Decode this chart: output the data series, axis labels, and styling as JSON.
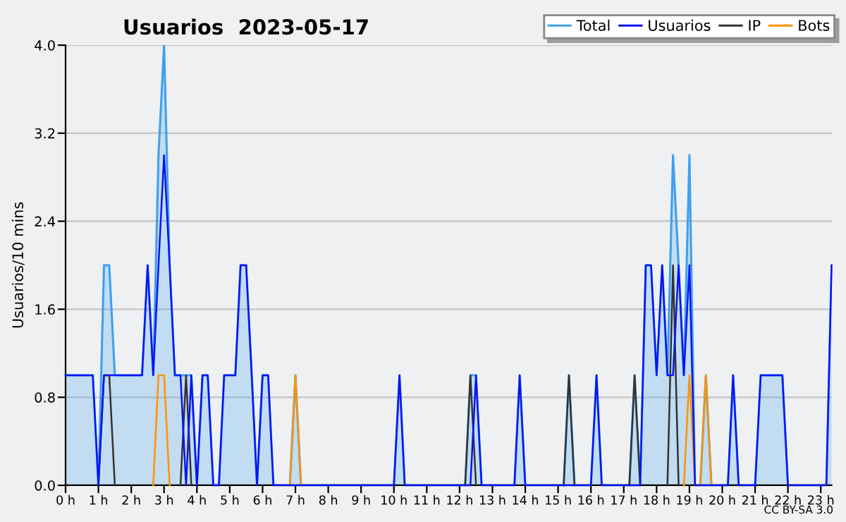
{
  "chart_data": {
    "type": "line",
    "title": "Usuarios  2023-05-17",
    "ylabel": "Usuarios/10 mins",
    "annotations": [
      "CC BY-SA 3.0"
    ],
    "x": [
      0,
      0.17,
      0.33,
      0.5,
      0.67,
      0.83,
      1,
      1.17,
      1.33,
      1.5,
      1.67,
      1.83,
      2,
      2.17,
      2.33,
      2.5,
      2.67,
      2.83,
      3,
      3.17,
      3.33,
      3.5,
      3.67,
      3.83,
      4,
      4.17,
      4.33,
      4.5,
      4.67,
      4.83,
      5,
      5.17,
      5.33,
      5.5,
      5.67,
      5.83,
      6,
      6.17,
      6.33,
      6.5,
      6.67,
      6.83,
      7,
      7.17,
      7.33,
      7.5,
      7.67,
      7.83,
      8,
      8.17,
      8.33,
      8.5,
      8.67,
      8.83,
      9,
      9.17,
      9.33,
      9.5,
      9.67,
      9.83,
      10,
      10.17,
      10.33,
      10.5,
      10.67,
      10.83,
      11,
      11.17,
      11.33,
      11.5,
      11.67,
      11.83,
      12,
      12.17,
      12.33,
      12.5,
      12.67,
      12.83,
      13,
      13.17,
      13.33,
      13.5,
      13.67,
      13.83,
      14,
      14.17,
      14.33,
      14.5,
      14.67,
      14.83,
      15,
      15.17,
      15.33,
      15.5,
      15.67,
      15.83,
      16,
      16.17,
      16.33,
      16.5,
      16.67,
      16.83,
      17,
      17.17,
      17.33,
      17.5,
      17.67,
      17.83,
      18,
      18.17,
      18.33,
      18.5,
      18.67,
      18.83,
      19,
      19.17,
      19.33,
      19.5,
      19.67,
      19.83,
      20,
      20.17,
      20.33,
      20.5,
      20.67,
      20.83,
      21,
      21.17,
      21.33,
      21.5,
      21.67,
      21.83,
      22,
      22.17,
      22.33,
      22.5,
      22.67,
      22.83,
      23,
      23.17,
      23.33
    ],
    "series": [
      {
        "name": "Total",
        "type": "area",
        "color": "#3ea0f0",
        "values": [
          1,
          1,
          1,
          1,
          1,
          1,
          0,
          2,
          2,
          1,
          1,
          1,
          1,
          1,
          1,
          2,
          1,
          3,
          4,
          2,
          1,
          1,
          1,
          1,
          0,
          1,
          1,
          0,
          0,
          1,
          1,
          1,
          2,
          2,
          1,
          0,
          1,
          1,
          0,
          0,
          0,
          0,
          1,
          0,
          0,
          0,
          0,
          0,
          0,
          0,
          0,
          0,
          0,
          0,
          0,
          0,
          0,
          0,
          0,
          0,
          0,
          1,
          0,
          0,
          0,
          0,
          0,
          0,
          0,
          0,
          0,
          0,
          0,
          0,
          1,
          1,
          0,
          0,
          0,
          0,
          0,
          0,
          0,
          1,
          0,
          0,
          0,
          0,
          0,
          0,
          0,
          0,
          1,
          0,
          0,
          0,
          0,
          1,
          0,
          0,
          0,
          0,
          0,
          0,
          1,
          0,
          2,
          2,
          1,
          2,
          1,
          3,
          2,
          1,
          3,
          0,
          0,
          1,
          0,
          0,
          0,
          0,
          1,
          0,
          0,
          0,
          0,
          1,
          1,
          1,
          1,
          1,
          0,
          0,
          0,
          0,
          0,
          0,
          0,
          0,
          2
        ]
      },
      {
        "name": "Usuarios",
        "color": "#0a14f5",
        "values": [
          1,
          1,
          1,
          1,
          1,
          1,
          0,
          1,
          1,
          1,
          1,
          1,
          1,
          1,
          1,
          2,
          1,
          2,
          3,
          2,
          1,
          1,
          0,
          1,
          0,
          1,
          1,
          0,
          0,
          1,
          1,
          1,
          2,
          2,
          1,
          0,
          1,
          1,
          0,
          0,
          0,
          0,
          0,
          0,
          0,
          0,
          0,
          0,
          0,
          0,
          0,
          0,
          0,
          0,
          0,
          0,
          0,
          0,
          0,
          0,
          0,
          1,
          0,
          0,
          0,
          0,
          0,
          0,
          0,
          0,
          0,
          0,
          0,
          0,
          0,
          1,
          0,
          0,
          0,
          0,
          0,
          0,
          0,
          1,
          0,
          0,
          0,
          0,
          0,
          0,
          0,
          0,
          0,
          0,
          0,
          0,
          0,
          1,
          0,
          0,
          0,
          0,
          0,
          0,
          0,
          0,
          2,
          2,
          1,
          2,
          1,
          1,
          2,
          1,
          2,
          0,
          0,
          0,
          0,
          0,
          0,
          0,
          1,
          0,
          0,
          0,
          0,
          1,
          1,
          1,
          1,
          1,
          0,
          0,
          0,
          0,
          0,
          0,
          0,
          0,
          2
        ]
      },
      {
        "name": "IP",
        "color": "#333333",
        "values": [
          null,
          null,
          null,
          null,
          null,
          null,
          0,
          1,
          1,
          0,
          null,
          null,
          null,
          null,
          null,
          null,
          null,
          null,
          null,
          null,
          null,
          0,
          1,
          0,
          null,
          null,
          null,
          null,
          null,
          null,
          null,
          null,
          null,
          null,
          null,
          null,
          null,
          null,
          null,
          null,
          null,
          null,
          null,
          null,
          null,
          null,
          null,
          null,
          null,
          null,
          null,
          null,
          null,
          null,
          null,
          null,
          null,
          null,
          null,
          null,
          null,
          null,
          null,
          null,
          null,
          null,
          null,
          null,
          null,
          null,
          null,
          null,
          null,
          0,
          1,
          0,
          null,
          null,
          null,
          null,
          null,
          null,
          null,
          null,
          null,
          null,
          null,
          null,
          null,
          null,
          null,
          0,
          1,
          0,
          null,
          null,
          null,
          null,
          null,
          null,
          null,
          null,
          null,
          0,
          1,
          0,
          null,
          null,
          null,
          null,
          0,
          2,
          0,
          null,
          null,
          null,
          null,
          null,
          null,
          null,
          null,
          null,
          null,
          null,
          null,
          null,
          null,
          null,
          null,
          null,
          null,
          null,
          null,
          null,
          null,
          null,
          null,
          null,
          null,
          null,
          null
        ]
      },
      {
        "name": "Bots",
        "color": "#ff9300",
        "values": [
          null,
          null,
          null,
          null,
          null,
          null,
          null,
          null,
          null,
          null,
          null,
          null,
          null,
          null,
          null,
          null,
          0,
          1,
          1,
          0,
          null,
          null,
          null,
          null,
          null,
          null,
          null,
          null,
          null,
          null,
          null,
          null,
          null,
          null,
          null,
          null,
          null,
          null,
          null,
          null,
          null,
          0,
          1,
          0,
          null,
          null,
          null,
          null,
          null,
          null,
          null,
          null,
          null,
          null,
          null,
          null,
          null,
          null,
          null,
          null,
          null,
          null,
          null,
          null,
          null,
          null,
          null,
          null,
          null,
          null,
          null,
          null,
          null,
          null,
          null,
          null,
          null,
          null,
          null,
          null,
          null,
          null,
          null,
          null,
          null,
          null,
          null,
          null,
          null,
          null,
          null,
          null,
          null,
          null,
          null,
          null,
          null,
          null,
          null,
          null,
          null,
          null,
          null,
          null,
          null,
          null,
          null,
          null,
          null,
          null,
          null,
          null,
          null,
          0,
          1,
          0,
          0,
          1,
          0,
          null,
          null,
          null,
          null,
          null,
          null,
          null,
          null,
          null,
          null,
          null,
          null,
          null,
          null,
          null,
          null,
          null,
          null,
          null,
          null,
          null,
          null
        ]
      }
    ],
    "xlim": [
      0,
      23.33
    ],
    "xticks": [
      {
        "value": 0,
        "label": "0 h"
      },
      {
        "value": 1,
        "label": "1 h"
      },
      {
        "value": 2,
        "label": "2 h"
      },
      {
        "value": 3,
        "label": "3 h"
      },
      {
        "value": 4,
        "label": "4 h"
      },
      {
        "value": 5,
        "label": "5 h"
      },
      {
        "value": 6,
        "label": "6 h"
      },
      {
        "value": 7,
        "label": "7 h"
      },
      {
        "value": 8,
        "label": "8 h"
      },
      {
        "value": 9,
        "label": "9 h"
      },
      {
        "value": 10,
        "label": "10 h"
      },
      {
        "value": 11,
        "label": "11 h"
      },
      {
        "value": 12,
        "label": "12 h"
      },
      {
        "value": 13,
        "label": "13 h"
      },
      {
        "value": 14,
        "label": "14 h"
      },
      {
        "value": 15,
        "label": "15 h"
      },
      {
        "value": 16,
        "label": "16 h"
      },
      {
        "value": 17,
        "label": "17 h"
      },
      {
        "value": 18,
        "label": "18 h"
      },
      {
        "value": 19,
        "label": "19 h"
      },
      {
        "value": 20,
        "label": "20 h"
      },
      {
        "value": 21,
        "label": "21 h"
      },
      {
        "value": 22,
        "label": "22 h"
      },
      {
        "value": 23,
        "label": "23 h"
      }
    ],
    "ylim": [
      0,
      4
    ],
    "yticks": [
      {
        "value": 0,
        "label": "0.0"
      },
      {
        "value": 0.8,
        "label": "0.8"
      },
      {
        "value": 1.6,
        "label": "1.6"
      },
      {
        "value": 2.4,
        "label": "2.4"
      },
      {
        "value": 3.2,
        "label": "3.2"
      },
      {
        "value": 4,
        "label": "4.0"
      }
    ],
    "grid": "y",
    "legend": "top right",
    "marker": "none",
    "line_style": "solid"
  }
}
